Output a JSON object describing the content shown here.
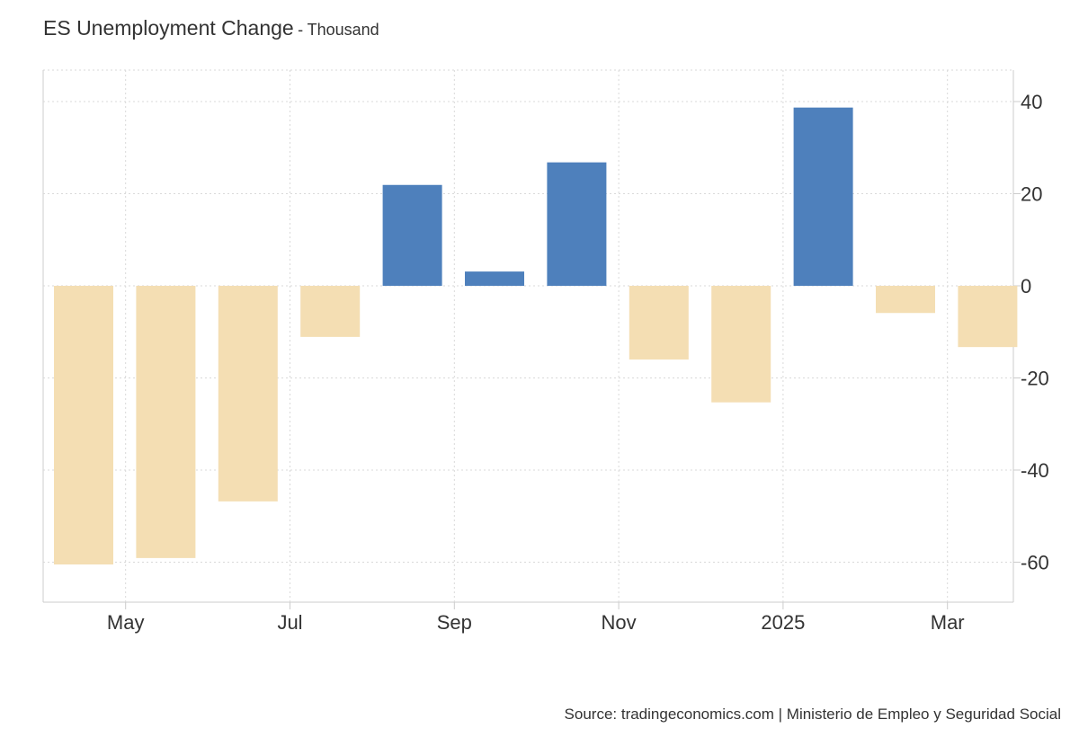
{
  "header": {
    "title": "ES Unemployment Change",
    "separator": "-",
    "unit": "Thousand"
  },
  "source": "Source: tradingeconomics.com | Ministerio de Empleo y Seguridad Social",
  "colors": {
    "positive": "#4e80bc",
    "negative": "#f4deb3",
    "grid": "#d9d9d9",
    "axis": "#cccccc",
    "text": "#333333"
  },
  "chart_data": {
    "type": "bar",
    "title": "ES Unemployment Change",
    "ylabel": "",
    "xlabel": "",
    "grid": true,
    "y_axis_side": "right",
    "ylim": [
      -68,
      46
    ],
    "yticks": [
      40,
      20,
      0,
      -20,
      -40,
      -60
    ],
    "categories": [
      "2024-04",
      "2024-05",
      "2024-06",
      "2024-07",
      "2024-08",
      "2024-09",
      "2024-10",
      "2024-11",
      "2024-12",
      "2025-01",
      "2025-02",
      "2025-03"
    ],
    "values": [
      -60.5,
      -59.1,
      -46.8,
      -11.1,
      21.9,
      3.1,
      26.8,
      -16.0,
      -25.3,
      38.7,
      -5.9,
      -13.3
    ],
    "x_tick_labels": [
      {
        "label": "May",
        "month": "2024-05"
      },
      {
        "label": "Jul",
        "month": "2024-07"
      },
      {
        "label": "Sep",
        "month": "2024-09"
      },
      {
        "label": "Nov",
        "month": "2024-11"
      },
      {
        "label": "2025",
        "month": "2025-01"
      },
      {
        "label": "Mar",
        "month": "2025-03"
      }
    ]
  }
}
